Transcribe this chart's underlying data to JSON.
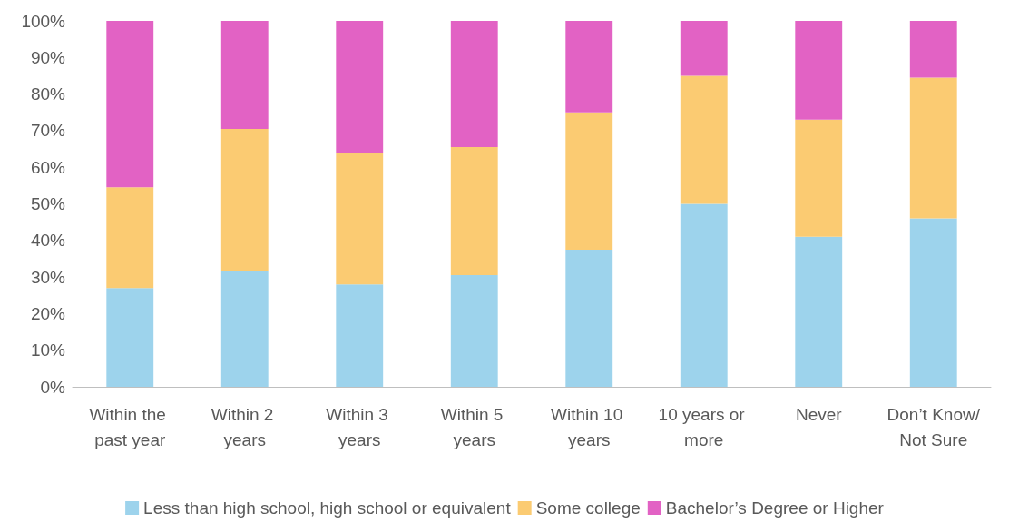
{
  "chart_data": {
    "type": "bar",
    "stacked": true,
    "categories": [
      "Within the past year",
      "Within 2 years",
      "Within 3 years",
      "Within 5 years",
      "Within 10 years",
      "10 years or more",
      "Never",
      "Don’t Know/Not Sure"
    ],
    "series": [
      {
        "name": "Less than high school, high school or equivalent",
        "color": "#9dd3ec",
        "values": [
          27,
          31.5,
          28,
          30.5,
          37.5,
          50,
          41,
          46
        ]
      },
      {
        "name": "Some college",
        "color": "#fbcb72",
        "values": [
          27.5,
          39,
          36,
          35,
          37.5,
          35,
          32,
          38.5
        ]
      },
      {
        "name": "Bachelor’s Degree or Higher",
        "color": "#e262c4",
        "values": [
          45.5,
          29.5,
          36,
          34.5,
          25,
          15,
          27,
          15.5
        ]
      }
    ],
    "ylim": [
      0,
      100
    ],
    "yticks": [
      {
        "value": 0,
        "label": "0%"
      },
      {
        "value": 10,
        "label": "10%"
      },
      {
        "value": 20,
        "label": "20%"
      },
      {
        "value": 30,
        "label": "30%"
      },
      {
        "value": 40,
        "label": "40%"
      },
      {
        "value": 50,
        "label": "50%"
      },
      {
        "value": 60,
        "label": "60%"
      },
      {
        "value": 70,
        "label": "70%"
      },
      {
        "value": 80,
        "label": "80%"
      },
      {
        "value": 90,
        "label": "90%"
      },
      {
        "value": 100,
        "label": "100%"
      }
    ],
    "grid": false,
    "legend": "bottom"
  }
}
